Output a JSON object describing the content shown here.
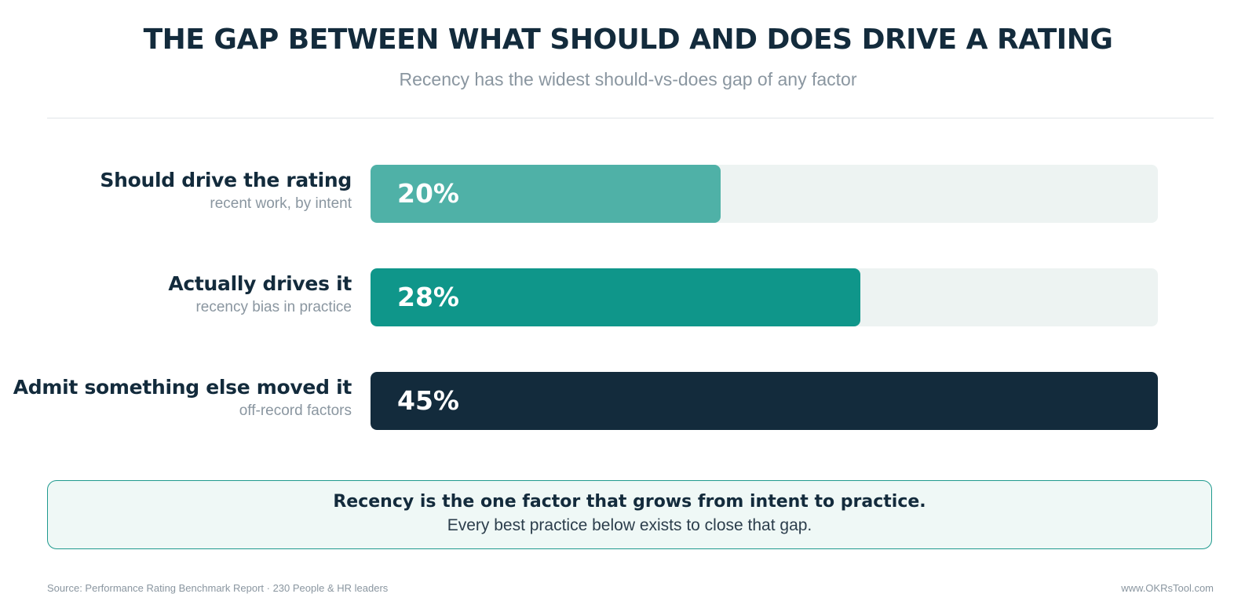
{
  "chart_data": {
    "type": "bar",
    "orientation": "horizontal",
    "title": "THE GAP BETWEEN WHAT SHOULD AND DOES DRIVE A RATING",
    "subtitle": "Recency has the widest should-vs-does gap of any factor",
    "unit": "%",
    "xlim": [
      0,
      45
    ],
    "categories": [
      {
        "label": "Should drive the rating",
        "sublabel": "recent work, by intent",
        "value": 20,
        "value_label": "20%",
        "color": "#4fb1a7"
      },
      {
        "label": "Actually drives it",
        "sublabel": "recency bias in practice",
        "value": 28,
        "value_label": "28%",
        "color": "#0f968a"
      },
      {
        "label": "Admit something else moved it",
        "sublabel": "off-record factors",
        "value": 45,
        "value_label": "45%",
        "color": "#132b3c"
      }
    ],
    "track_color": "#edf3f2",
    "grid": false,
    "legend": "none"
  },
  "callout": {
    "headline": "Recency is the one factor that grows from intent to practice.",
    "body": "Every best practice below exists to close that gap."
  },
  "footer": {
    "source": "Source: Performance Rating Benchmark Report · 230 People & HR leaders",
    "site": "www.OKRsTool.com"
  }
}
